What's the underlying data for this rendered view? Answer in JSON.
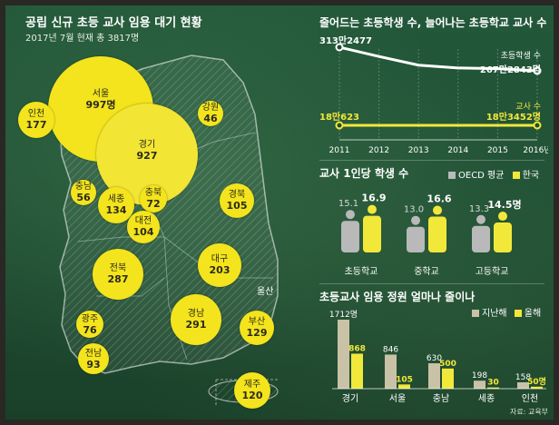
{
  "map": {
    "title": "공립 신규 초등 교사 임용 대기 현황",
    "subtitle": "2017년 7월 현재 총 3817명",
    "regions": [
      {
        "name": "서울",
        "value": "997명"
      },
      {
        "name": "인천",
        "value": "177"
      },
      {
        "name": "경기",
        "value": "927"
      },
      {
        "name": "강원",
        "value": "46"
      },
      {
        "name": "충남",
        "value": "56"
      },
      {
        "name": "세종",
        "value": "134"
      },
      {
        "name": "충북",
        "value": "72"
      },
      {
        "name": "대전",
        "value": "104"
      },
      {
        "name": "경북",
        "value": "105"
      },
      {
        "name": "전북",
        "value": "287"
      },
      {
        "name": "대구",
        "value": "203"
      },
      {
        "name": "울산",
        "value": ""
      },
      {
        "name": "광주",
        "value": "76"
      },
      {
        "name": "경남",
        "value": "291"
      },
      {
        "name": "부산",
        "value": "129"
      },
      {
        "name": "전남",
        "value": "93"
      },
      {
        "name": "제주",
        "value": "120"
      }
    ]
  },
  "chart_data": [
    {
      "type": "line",
      "title": "줄어드는 초등학생 수, 늘어나는 초등학교 교사 수",
      "x": [
        "2011",
        "2012",
        "2013",
        "2014",
        "2015",
        "2016년"
      ],
      "series": [
        {
          "name": "초등학생 수",
          "values": [
            3132477,
            2951995,
            2784000,
            2728509,
            2714610,
            2672843
          ],
          "start_label": "313만2477",
          "end_label": "267만2843명",
          "color": "#ffffff"
        },
        {
          "name": "교사 수",
          "values": [
            180623,
            181435,
            181585,
            182672,
            183452,
            183452
          ],
          "start_label": "18만623",
          "end_label": "18만3452명",
          "color": "#f2e83a"
        }
      ]
    },
    {
      "type": "bar",
      "title": "교사 1인당 학생 수",
      "legend": [
        "OECD 평균",
        "한국"
      ],
      "categories": [
        "초등학교",
        "중학교",
        "고등학교"
      ],
      "series": [
        {
          "name": "OECD 평균",
          "values": [
            15.1,
            13.0,
            13.3
          ],
          "labels": [
            "15.1",
            "13.0",
            "13.3"
          ],
          "color": "#b9b9b9"
        },
        {
          "name": "한국",
          "values": [
            16.9,
            16.6,
            14.5
          ],
          "labels": [
            "16.9",
            "16.6",
            "14.5명"
          ],
          "color": "#f2e83a"
        }
      ]
    },
    {
      "type": "bar",
      "title": "초등교사 임용 정원 얼마나 줄이나",
      "legend": [
        "지난해",
        "올해"
      ],
      "categories": [
        "경기",
        "서울",
        "충남",
        "세종",
        "인천"
      ],
      "series": [
        {
          "name": "지난해",
          "values": [
            1712,
            846,
            630,
            198,
            158
          ],
          "labels": [
            "1712명",
            "846",
            "630",
            "198",
            "158"
          ],
          "color": "#c9c2a7"
        },
        {
          "name": "올해",
          "values": [
            868,
            105,
            500,
            30,
            50
          ],
          "labels": [
            "868",
            "105",
            "500",
            "30",
            "50명"
          ],
          "color": "#f2e83a"
        }
      ],
      "note": "자료: 교육부"
    }
  ]
}
